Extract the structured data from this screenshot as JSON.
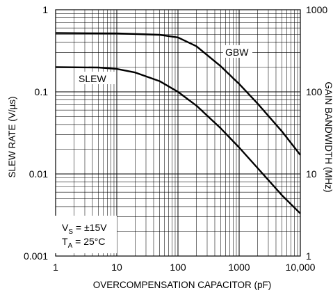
{
  "chart_data": {
    "type": "line",
    "x_scale": "log",
    "y_scale": "log",
    "y2_scale": "log",
    "xlabel": "OVERCOMPENSATION CAPACITOR (pF)",
    "ylabel": "SLEW RATE (V/µs)",
    "y2label": "GAIN BANDWIDTH (MHz)",
    "xlim": [
      1,
      10000
    ],
    "ylim": [
      0.001,
      1
    ],
    "y2lim": [
      1,
      1000
    ],
    "grid": true,
    "x_ticks": [
      {
        "value": 1,
        "label": "1"
      },
      {
        "value": 10,
        "label": "10"
      },
      {
        "value": 100,
        "label": "100"
      },
      {
        "value": 1000,
        "label": "1000"
      },
      {
        "value": 10000,
        "label": "10,000"
      }
    ],
    "y_ticks": [
      {
        "value": 1,
        "label": "1"
      },
      {
        "value": 0.1,
        "label": "0.1"
      },
      {
        "value": 0.01,
        "label": "0.01"
      },
      {
        "value": 0.001,
        "label": "0.001"
      }
    ],
    "y2_ticks": [
      {
        "value": 1000,
        "label": "1000"
      },
      {
        "value": 100,
        "label": "100"
      },
      {
        "value": 10,
        "label": "10"
      },
      {
        "value": 1,
        "label": "1"
      }
    ],
    "series": [
      {
        "name": "SLEW",
        "axis": "left",
        "x": [
          1,
          5,
          10,
          20,
          50,
          100,
          200,
          500,
          1000,
          2000,
          5000,
          10000
        ],
        "y": [
          0.2,
          0.198,
          0.19,
          0.172,
          0.135,
          0.1,
          0.068,
          0.036,
          0.021,
          0.0118,
          0.0055,
          0.0033
        ]
      },
      {
        "name": "GBW",
        "axis": "right",
        "x": [
          1,
          10,
          50,
          100,
          200,
          500,
          1000,
          2000,
          5000,
          10000
        ],
        "y": [
          520,
          515,
          495,
          460,
          360,
          205,
          125,
          72,
          33,
          17
        ]
      }
    ],
    "conditions": {
      "vs_label": "V",
      "vs_sub": "S",
      "vs_value": " = ±15V",
      "ta_label": "T",
      "ta_sub": "A",
      "ta_value": " = 25°C"
    }
  }
}
